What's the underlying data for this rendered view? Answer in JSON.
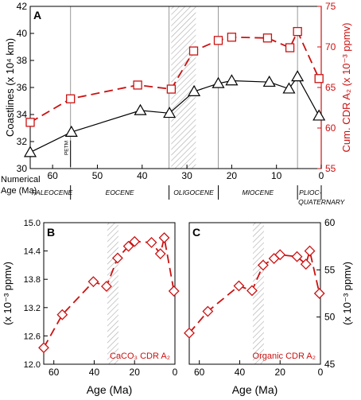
{
  "colors": {
    "black": "#000000",
    "red": "#cc1111",
    "grid": "#9a9a9a",
    "hatch": "#aaaaaa"
  },
  "chart_data": [
    {
      "panel": "A",
      "type": "line",
      "xlabel": "",
      "xlim": [
        65,
        0
      ],
      "xticks": [
        60,
        50,
        40,
        30,
        20,
        10,
        0
      ],
      "numerical_label": "Numerical",
      "age_label": "Age (Ma)",
      "epochs": [
        {
          "name": "PALEOCENE",
          "start": 65,
          "end": 56
        },
        {
          "name": "EOCENE",
          "start": 56,
          "end": 34
        },
        {
          "name": "OLIGOCENE",
          "start": 34,
          "end": 23
        },
        {
          "name": "MIOCENE",
          "start": 23,
          "end": 5.3
        },
        {
          "name": "PLIOC-",
          "name2": "QUATERNARY",
          "start": 5.3,
          "end": 0
        }
      ],
      "event_label": "PETM",
      "event_age": 56,
      "hatch_range": [
        33.5,
        28
      ],
      "left_axis": {
        "label": "Coastlines (x 10⁴ km)",
        "ylim": [
          30,
          42
        ],
        "yticks": [
          30,
          32,
          34,
          36,
          38,
          40,
          42
        ]
      },
      "right_axis": {
        "label": "Cum. CDR A₂ (x 10⁻³ ppmv)",
        "ylim": [
          55,
          75
        ],
        "yticks": [
          55,
          60,
          65,
          70,
          75
        ]
      },
      "series": [
        {
          "axis": "left",
          "marker": "triangle",
          "style": "solid",
          "x": [
            65,
            55.8,
            40.4,
            33.9,
            28.4,
            23,
            20,
            11.6,
            7.2,
            5.3,
            0.5
          ],
          "y": [
            31.2,
            32.7,
            34.3,
            34.1,
            35.7,
            36.3,
            36.5,
            36.4,
            35.9,
            36.8,
            33.9
          ]
        },
        {
          "axis": "right",
          "marker": "square",
          "style": "dashed",
          "x": [
            65,
            56,
            41,
            33.5,
            28.5,
            23,
            20,
            12,
            7,
            5.3,
            0.5
          ],
          "y": [
            60.7,
            63.6,
            65.3,
            64.8,
            69.5,
            70.8,
            71.2,
            71.1,
            69.9,
            71.9,
            66.1
          ]
        }
      ]
    },
    {
      "panel": "B",
      "type": "line",
      "xlabel": "Age (Ma)",
      "ylabel": "(x 10⁻³ ppmv)",
      "annotation": "CaCO₃ CDR A₂",
      "xlim": [
        65,
        0
      ],
      "xticks": [
        60,
        40,
        20,
        0
      ],
      "ylim": [
        12.0,
        15.0
      ],
      "yticks": [
        12.0,
        12.6,
        13.2,
        13.8,
        14.4,
        15.0
      ],
      "hatch_range": [
        33.5,
        28
      ],
      "series": [
        {
          "axis": "left",
          "marker": "diamond",
          "style": "dashed",
          "x": [
            65,
            55.8,
            40.4,
            33.9,
            28.4,
            23,
            20,
            11.6,
            7.2,
            5.3,
            0.5
          ],
          "y": [
            12.35,
            13.05,
            13.75,
            13.65,
            14.25,
            14.5,
            14.6,
            14.58,
            14.34,
            14.68,
            13.55
          ]
        }
      ]
    },
    {
      "panel": "C",
      "type": "line",
      "xlabel": "Age (Ma)",
      "ylabel": "(x 10⁻³ ppmv)",
      "annotation": "Organic CDR A₂",
      "xlim": [
        65,
        0
      ],
      "xticks": [
        60,
        40,
        20,
        0
      ],
      "ylim": [
        45,
        60
      ],
      "yticks": [
        45,
        50,
        55,
        60
      ],
      "hatch_range": [
        33.5,
        28
      ],
      "series": [
        {
          "axis": "right",
          "marker": "diamond",
          "style": "dashed",
          "x": [
            65,
            55.8,
            40.4,
            33.9,
            28.4,
            23,
            20,
            11.6,
            7.2,
            5.3,
            0.5
          ],
          "y": [
            48.3,
            50.6,
            53.3,
            52.8,
            55.5,
            56.2,
            56.6,
            56.4,
            55.6,
            57.0,
            52.5
          ]
        }
      ]
    }
  ]
}
